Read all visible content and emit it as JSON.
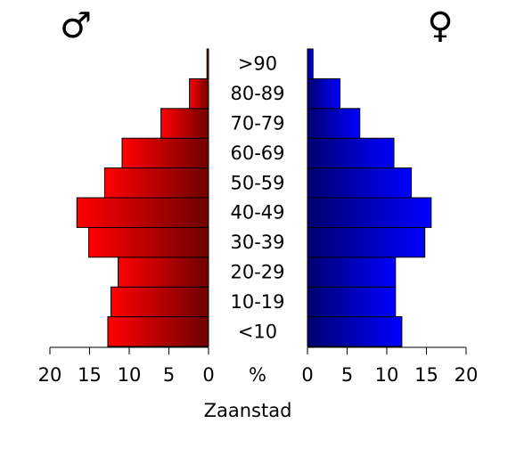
{
  "chart_data": {
    "type": "bar",
    "orientation": "horizontal",
    "layout": "population-pyramid",
    "title": "Zaanstad",
    "center_label": "%",
    "categories": [
      "<10",
      "10-19",
      "20-29",
      "30-39",
      "40-49",
      "50-59",
      "60-69",
      "70-79",
      "80-89",
      ">90"
    ],
    "series": [
      {
        "name": "♂",
        "side": "left",
        "color": "#e00000",
        "values": [
          12.7,
          12.3,
          11.4,
          15.1,
          16.6,
          13.1,
          10.9,
          6.0,
          2.4,
          0.2
        ]
      },
      {
        "name": "♀",
        "side": "right",
        "color": "#0000e0",
        "values": [
          11.9,
          11.1,
          11.1,
          14.8,
          15.6,
          13.1,
          10.9,
          6.6,
          4.1,
          0.7
        ]
      }
    ],
    "xlim": [
      0,
      20
    ],
    "xticks": [
      0,
      5,
      10,
      15,
      20
    ]
  }
}
